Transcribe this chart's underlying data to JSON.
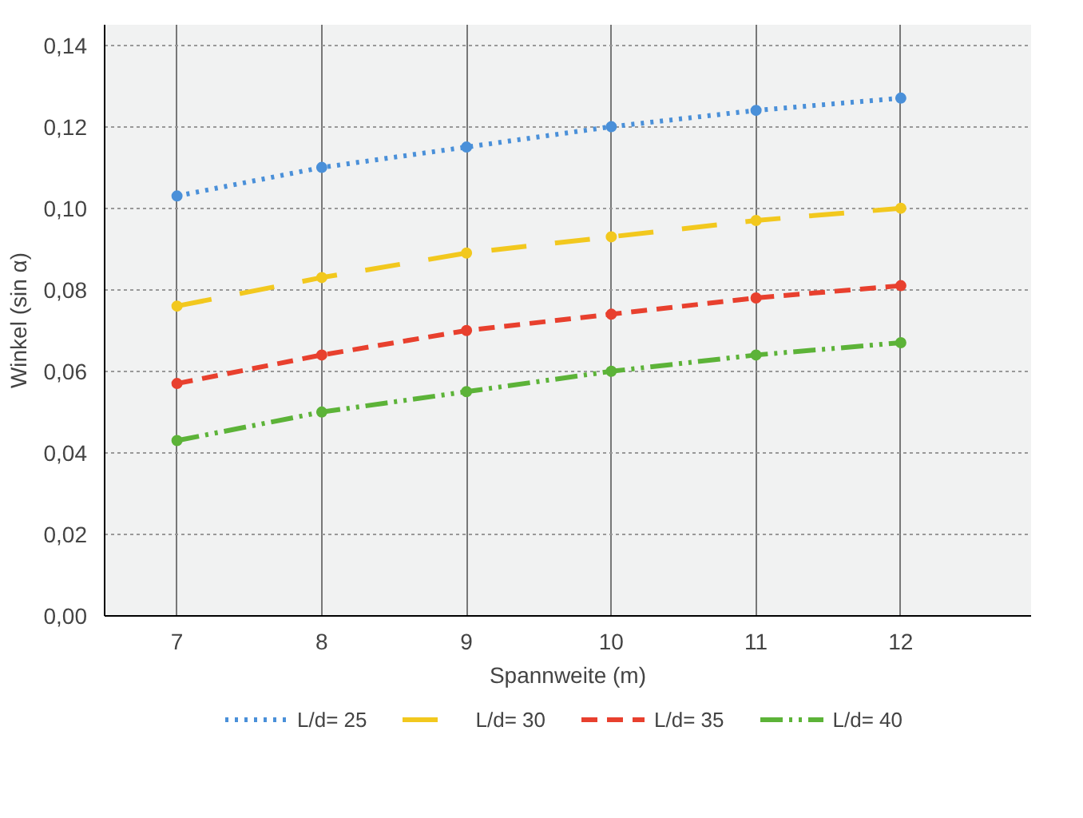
{
  "chart_data": {
    "type": "line",
    "xlabel": "Spannweite (m)",
    "ylabel": "Winkel (sin α)",
    "x": [
      7,
      8,
      9,
      10,
      11,
      12
    ],
    "series": [
      {
        "name": "L/d= 25",
        "color": "#4a90d9",
        "line_style": "dotted",
        "values": [
          0.103,
          0.11,
          0.115,
          0.12,
          0.124,
          0.127
        ]
      },
      {
        "name": "L/d= 30",
        "color": "#f2c81e",
        "line_style": "long dashed",
        "values": [
          0.076,
          0.083,
          0.089,
          0.093,
          0.097,
          0.1
        ]
      },
      {
        "name": "L/d= 35",
        "color": "#e8402e",
        "line_style": "dashed",
        "values": [
          0.057,
          0.064,
          0.07,
          0.074,
          0.078,
          0.081
        ]
      },
      {
        "name": "L/d= 40",
        "color": "#5cb338",
        "line_style": "dash-dot-dot",
        "values": [
          0.043,
          0.05,
          0.055,
          0.06,
          0.064,
          0.067
        ]
      }
    ],
    "xlim": [
      6.5,
      12.9
    ],
    "ylim": [
      0,
      0.145
    ],
    "xticks": [
      7,
      8,
      9,
      10,
      11,
      12
    ],
    "yticks": [
      {
        "value": 0,
        "label": "0,00"
      },
      {
        "value": 0.02,
        "label": "0,02"
      },
      {
        "value": 0.04,
        "label": "0,04"
      },
      {
        "value": 0.06,
        "label": "0,06"
      },
      {
        "value": 0.08,
        "label": "0,08"
      },
      {
        "value": 0.1,
        "label": "0,10"
      },
      {
        "value": 0.12,
        "label": "0,12"
      },
      {
        "value": 0.14,
        "label": "0,14"
      }
    ],
    "grid": true,
    "legend": "bottom",
    "marker": "circle"
  }
}
